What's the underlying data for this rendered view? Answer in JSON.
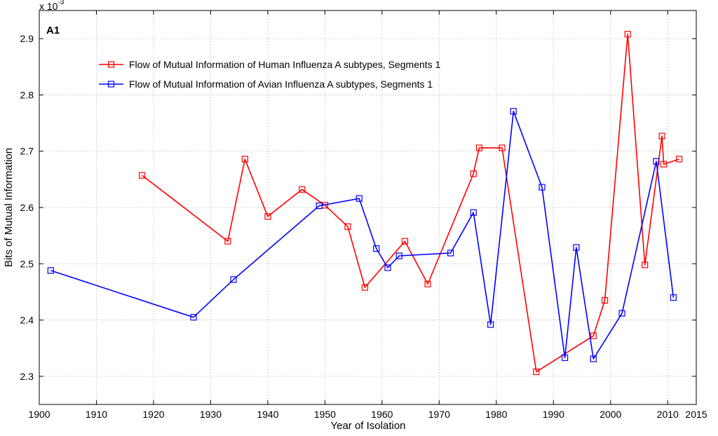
{
  "chart_data": {
    "type": "line",
    "panel_label": "A1",
    "xlabel": "Year of Isolation",
    "ylabel": "Bits of Mutual Information",
    "y_exponent_label": "x 10",
    "y_exponent_power": "-3",
    "xlim": [
      1900,
      2015
    ],
    "ylim": [
      2.25,
      2.95
    ],
    "x_ticks": [
      1900,
      1910,
      1920,
      1930,
      1940,
      1950,
      1960,
      1970,
      1980,
      1990,
      2000,
      2010,
      2015
    ],
    "x_tick_labels": [
      "1900",
      "1910",
      "1920",
      "1930",
      "1940",
      "1950",
      "1960",
      "1970",
      "1980",
      "1990",
      "2000",
      "2010",
      "2015"
    ],
    "y_ticks": [
      2.3,
      2.4,
      2.5,
      2.6,
      2.7,
      2.8,
      2.9
    ],
    "y_tick_labels": [
      "2.3",
      "2.4",
      "2.5",
      "2.6",
      "2.7",
      "2.8",
      "2.9"
    ],
    "grid": true,
    "legend_position": "top-left",
    "series": [
      {
        "name": "Flow of Mutual Information of Human Influenza A subtypes, Segments 1",
        "color": "#ff0000",
        "marker": "square",
        "x": [
          1918,
          1933,
          1936,
          1940,
          1946,
          1950,
          1954,
          1957,
          1964,
          1968,
          1976,
          1977,
          1981,
          1987,
          1997,
          1999,
          2003,
          2006,
          2009,
          2009.3,
          2012
        ],
        "y": [
          2.657,
          2.54,
          2.686,
          2.584,
          2.632,
          2.604,
          2.566,
          2.458,
          2.54,
          2.464,
          2.66,
          2.706,
          2.706,
          2.308,
          2.372,
          2.435,
          2.908,
          2.498,
          2.727,
          2.677,
          2.686
        ]
      },
      {
        "name": "Flow of Mutual Information of Avian Influenza A subtypes, Segments 1",
        "color": "#0000ff",
        "marker": "square",
        "x": [
          1902,
          1927,
          1934,
          1949,
          1956,
          1959,
          1961,
          1963,
          1972,
          1976,
          1979,
          1983,
          1988,
          1992,
          1994,
          1997,
          2002,
          2008,
          2011
        ],
        "y": [
          2.488,
          2.405,
          2.472,
          2.603,
          2.616,
          2.527,
          2.493,
          2.514,
          2.519,
          2.591,
          2.392,
          2.771,
          2.636,
          2.333,
          2.529,
          2.331,
          2.412,
          2.682,
          2.44
        ]
      }
    ]
  }
}
